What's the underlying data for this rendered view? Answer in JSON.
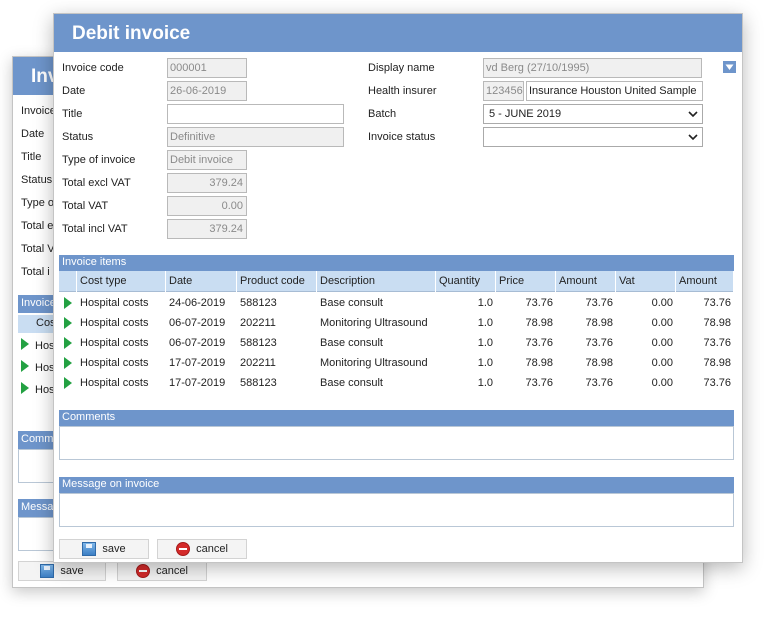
{
  "background_window": {
    "title": "Inv",
    "labels": [
      "Invoice",
      "Date",
      "Title",
      "Status",
      "Type o",
      "Total e",
      "Total V",
      "Total i"
    ],
    "section_items": "Invoice",
    "column_first": "Cos",
    "rows": [
      "Hos",
      "Hos",
      "Hos"
    ],
    "section_comments": "Comm",
    "section_message": "Messa",
    "save_label": "save",
    "cancel_label": "cancel"
  },
  "dialog": {
    "title": "Debit invoice"
  },
  "form": {
    "invoice_code_label": "Invoice code",
    "invoice_code": "000001",
    "date_label": "Date",
    "date": "26-06-2019",
    "title_label": "Title",
    "title_value": "",
    "status_label": "Status",
    "status": "Definitive",
    "type_label": "Type of invoice",
    "type": "Debit invoice",
    "total_excl_label": "Total excl VAT",
    "total_excl": "379.24",
    "total_vat_label": "Total VAT",
    "total_vat": "0.00",
    "total_incl_label": "Total incl VAT",
    "total_incl": "379.24",
    "display_name_label": "Display name",
    "display_name": "vd Berg (27/10/1995)",
    "health_insurer_label": "Health insurer",
    "health_insurer_code": "123456",
    "health_insurer_name": "Insurance Houston United Sample",
    "batch_label": "Batch",
    "batch": "5 - JUNE 2019",
    "invoice_status_label": "Invoice status",
    "invoice_status": ""
  },
  "items": {
    "section_title": "Invoice items",
    "columns": [
      "Cost type",
      "Date",
      "Product code",
      "Description",
      "Quantity",
      "Price",
      "Amount",
      "Vat",
      "Amount"
    ],
    "rows": [
      [
        "Hospital costs",
        "24-06-2019",
        "588123",
        "Base consult",
        "1.0",
        "73.76",
        "73.76",
        "0.00",
        "73.76"
      ],
      [
        "Hospital costs",
        "06-07-2019",
        "202211",
        "Monitoring Ultrasound",
        "1.0",
        "78.98",
        "78.98",
        "0.00",
        "78.98"
      ],
      [
        "Hospital costs",
        "06-07-2019",
        "588123",
        "Base consult",
        "1.0",
        "73.76",
        "73.76",
        "0.00",
        "73.76"
      ],
      [
        "Hospital costs",
        "17-07-2019",
        "202211",
        "Monitoring Ultrasound",
        "1.0",
        "78.98",
        "78.98",
        "0.00",
        "78.98"
      ],
      [
        "Hospital costs",
        "17-07-2019",
        "588123",
        "Base consult",
        "1.0",
        "73.76",
        "73.76",
        "0.00",
        "73.76"
      ]
    ]
  },
  "comments": {
    "section_title": "Comments"
  },
  "message": {
    "section_title": "Message on invoice"
  },
  "buttons": {
    "save": "save",
    "cancel": "cancel"
  },
  "colors": {
    "accent": "#6e95cb",
    "column_header": "#c9ddf2",
    "row_marker": "#23a142"
  },
  "icons": {
    "collapse": "triangle-down-icon",
    "row_marker": "triangle-right-icon",
    "save": "floppy-icon",
    "cancel": "no-entry-icon",
    "dropdown": "chevron-down-icon"
  }
}
